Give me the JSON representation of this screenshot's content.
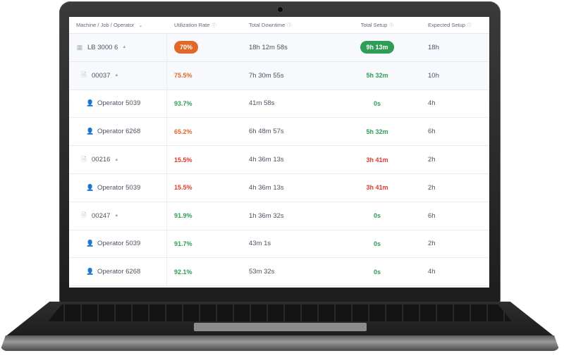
{
  "table": {
    "columns": {
      "machine_job_operator": "Machine / Job / Operator",
      "utilization_rate": "Utilization Rate",
      "total_downtime": "Total Downtime",
      "total_setup": "Total Setup",
      "expected_setup": "Expected Setup"
    },
    "colors": {
      "orange": "#e0692a",
      "red": "#e0382f",
      "green": "#2e9d55"
    },
    "rows": [
      {
        "type": "machine",
        "name": "LB 3000 6",
        "utilization": "70%",
        "downtime": "18h 12m 58s",
        "setup": "9h 13m",
        "expected": "18h"
      },
      {
        "type": "job",
        "name": "00037",
        "utilization": "75.5%",
        "downtime": "7h 30m 55s",
        "setup": "5h 32m",
        "expected": "10h"
      },
      {
        "type": "operator",
        "name": "Operator 5039",
        "utilization": "93.7%",
        "downtime": "41m 58s",
        "setup": "0s",
        "expected": "4h"
      },
      {
        "type": "operator",
        "name": "Operator 6268",
        "utilization": "65.2%",
        "downtime": "6h 48m 57s",
        "setup": "5h 32m",
        "expected": "6h"
      },
      {
        "type": "job",
        "name": "00216",
        "utilization": "15.5%",
        "downtime": "4h 36m 13s",
        "setup": "3h 41m",
        "expected": "2h"
      },
      {
        "type": "operator",
        "name": "Operator 5039",
        "utilization": "15.5%",
        "downtime": "4h 36m 13s",
        "setup": "3h 41m",
        "expected": "2h"
      },
      {
        "type": "job",
        "name": "00247",
        "utilization": "91.9%",
        "downtime": "1h 36m 32s",
        "setup": "0s",
        "expected": "6h"
      },
      {
        "type": "operator",
        "name": "Operator 5039",
        "utilization": "91.7%",
        "downtime": "43m 1s",
        "setup": "0s",
        "expected": "2h"
      },
      {
        "type": "operator",
        "name": "Operator 6268",
        "utilization": "92.1%",
        "downtime": "53m 32s",
        "setup": "0s",
        "expected": "4h"
      }
    ]
  }
}
